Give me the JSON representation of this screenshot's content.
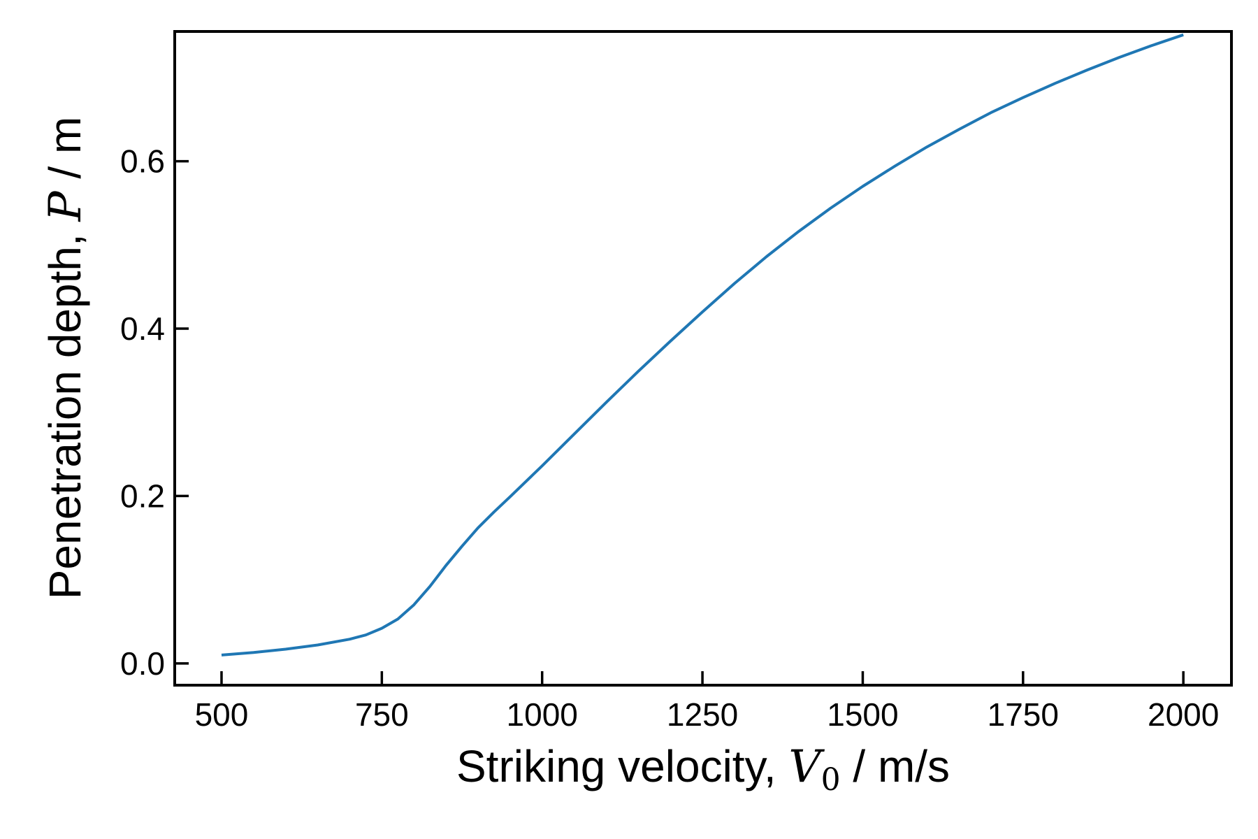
{
  "chart_data": {
    "type": "line",
    "xlabel": {
      "prefix": "Striking velocity, ",
      "symbol": "V",
      "subscript": "0",
      "suffix": " / m/s"
    },
    "ylabel": {
      "prefix": "Penetration depth, ",
      "symbol": "P",
      "suffix": " / m"
    },
    "xlim": [
      427,
      2075
    ],
    "ylim": [
      -0.026,
      0.755
    ],
    "x_ticks": [
      {
        "value": 500,
        "label": "500"
      },
      {
        "value": 750,
        "label": "750"
      },
      {
        "value": 1000,
        "label": "1000"
      },
      {
        "value": 1250,
        "label": "1250"
      },
      {
        "value": 1500,
        "label": "1500"
      },
      {
        "value": 1750,
        "label": "1750"
      },
      {
        "value": 2000,
        "label": "2000"
      }
    ],
    "y_ticks": [
      {
        "value": 0.0,
        "label": "0.0"
      },
      {
        "value": 0.2,
        "label": "0.2"
      },
      {
        "value": 0.4,
        "label": "0.4"
      },
      {
        "value": 0.6,
        "label": "0.6"
      }
    ],
    "grid": false,
    "line_color": "#1f77b4",
    "series": [
      {
        "x": [
          500,
          550,
          600,
          650,
          700,
          725,
          750,
          775,
          800,
          825,
          850,
          875,
          900,
          925,
          950,
          1000,
          1050,
          1100,
          1150,
          1200,
          1250,
          1300,
          1350,
          1400,
          1450,
          1500,
          1550,
          1600,
          1650,
          1700,
          1750,
          1800,
          1850,
          1900,
          1950,
          2000
        ],
        "y": [
          0.01,
          0.013,
          0.017,
          0.022,
          0.029,
          0.034,
          0.042,
          0.053,
          0.07,
          0.092,
          0.117,
          0.14,
          0.162,
          0.181,
          0.199,
          0.236,
          0.274,
          0.312,
          0.349,
          0.385,
          0.42,
          0.454,
          0.486,
          0.516,
          0.544,
          0.57,
          0.594,
          0.617,
          0.638,
          0.658,
          0.676,
          0.693,
          0.709,
          0.724,
          0.738,
          0.751
        ]
      }
    ]
  }
}
